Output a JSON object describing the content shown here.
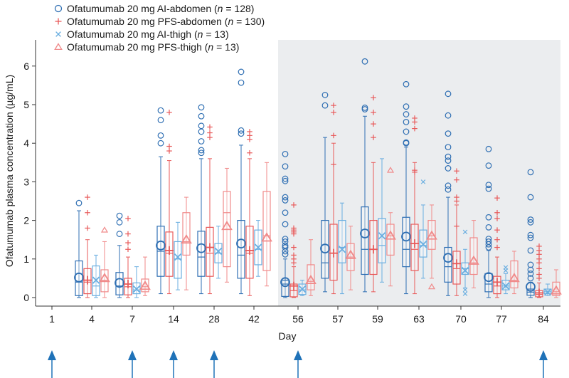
{
  "chart_data": {
    "type": "box",
    "title": "",
    "xlabel": "Day",
    "ylabel": "Ofatumumab plasma concentration (µg/mL)",
    "ylim": [
      -0.15,
      6.6
    ],
    "yticks": [
      0,
      1,
      2,
      3,
      4,
      5,
      6
    ],
    "categories": [
      "1",
      "4",
      "7",
      "14",
      "28",
      "42",
      "56",
      "57",
      "59",
      "63",
      "70",
      "77",
      "84"
    ],
    "shaded_region": {
      "from_category": "56",
      "to_category": "84"
    },
    "dosing_days": [
      "1",
      "7",
      "14",
      "28",
      "56",
      "84"
    ],
    "colors": {
      "ai_abdomen": "#2f6fb3",
      "pfs_abdomen": "#e85a5a",
      "ai_thigh": "#6aaee0",
      "pfs_thigh": "#f08a8a",
      "shade": "#ebedef",
      "arrow": "#1f72b8"
    },
    "legend": [
      {
        "label": "Ofatumumab 20 mg AI-abdomen (",
        "n": "128",
        "marker": "circle",
        "series": "ai_abdomen"
      },
      {
        "label": "Ofatumumab 20 mg PFS-abdomen (",
        "n": "130",
        "marker": "plus",
        "series": "pfs_abdomen"
      },
      {
        "label": "Ofatumumab 20 mg AI-thigh (",
        "n": "13",
        "marker": "x",
        "series": "ai_thigh"
      },
      {
        "label": "Ofatumumab 20 mg PFS-thigh (",
        "n": "13",
        "marker": "triangle",
        "series": "pfs_thigh"
      }
    ],
    "legend_n_prefix": "n",
    "legend_n_equals": " = ",
    "legend_suffix": ")",
    "series": [
      {
        "key": "ai_abdomen",
        "name": "Ofatumumab 20 mg AI-abdomen",
        "mean_marker": "circle",
        "outlier_marker": "circle",
        "boxes": {
          "4": {
            "min": 0.0,
            "q1": 0.05,
            "median": 0.4,
            "q3": 0.95,
            "max": 2.25,
            "mean": 0.52,
            "outliers": [
              2.45
            ]
          },
          "7": {
            "min": 0.0,
            "q1": 0.07,
            "median": 0.3,
            "q3": 0.65,
            "max": 1.35,
            "mean": 0.38,
            "outliers": [
              1.65,
              1.95,
              2.12
            ]
          },
          "14": {
            "min": 0.1,
            "q1": 0.55,
            "median": 1.2,
            "q3": 1.85,
            "max": 3.65,
            "mean": 1.35,
            "outliers": [
              4.0,
              4.2,
              4.6,
              4.85
            ]
          },
          "28": {
            "min": 0.1,
            "q1": 0.55,
            "median": 1.05,
            "q3": 1.72,
            "max": 3.6,
            "mean": 1.28,
            "outliers": [
              3.75,
              3.82,
              4.05,
              4.3,
              4.45,
              4.7,
              4.93
            ]
          },
          "42": {
            "min": 0.1,
            "q1": 0.5,
            "median": 1.1,
            "q3": 2.0,
            "max": 3.95,
            "mean": 1.4,
            "outliers": [
              4.25,
              4.33,
              5.57,
              5.85
            ]
          },
          "56": {
            "min": 0.0,
            "q1": 0.03,
            "median": 0.35,
            "q3": 0.45,
            "max": 1.0,
            "mean": 0.4,
            "outliers": [
              1.12,
              1.2,
              1.3,
              1.35,
              1.45,
              1.52,
              1.9,
              2.2,
              2.52,
              2.6,
              3.02,
              3.08,
              3.4,
              3.72
            ]
          },
          "57": {
            "min": 0.15,
            "q1": 0.5,
            "median": 0.9,
            "q3": 2.0,
            "max": 4.15,
            "mean": 1.27,
            "outliers": [
              4.98,
              5.25
            ]
          },
          "59": {
            "min": 0.15,
            "q1": 0.6,
            "median": 1.25,
            "q3": 2.35,
            "max": 4.7,
            "mean": 1.66,
            "outliers": [
              4.88,
              4.92,
              6.12
            ]
          },
          "63": {
            "min": 0.1,
            "q1": 0.8,
            "median": 1.25,
            "q3": 2.08,
            "max": 3.9,
            "mean": 1.58,
            "outliers": [
              4.0,
              4.02,
              4.3,
              4.55,
              4.75,
              4.95,
              5.53
            ]
          },
          "70": {
            "min": 0.05,
            "q1": 0.4,
            "median": 0.8,
            "q3": 1.3,
            "max": 2.6,
            "mean": 1.03,
            "outliers": [
              2.8,
              2.9,
              3.35,
              3.55,
              3.65,
              3.9,
              4.25,
              4.72,
              5.28
            ]
          },
          "77": {
            "min": 0.0,
            "q1": 0.15,
            "median": 0.35,
            "q3": 0.62,
            "max": 1.22,
            "mean": 0.53,
            "outliers": [
              1.3,
              1.38,
              1.45,
              1.52,
              1.82,
              2.08,
              2.82,
              2.92,
              3.42,
              3.85
            ]
          },
          "84": {
            "min": 0.0,
            "q1": 0.06,
            "median": 0.14,
            "q3": 0.22,
            "max": 0.4,
            "mean": 0.28,
            "outliers": [
              0.5,
              0.62,
              0.72,
              0.85,
              1.22,
              1.55,
              1.62,
              1.95,
              2.02,
              2.6,
              3.25
            ]
          }
        }
      },
      {
        "key": "pfs_abdomen",
        "name": "Ofatumumab 20 mg PFS-abdomen",
        "mean_marker": "plus",
        "outlier_marker": "plus",
        "boxes": {
          "4": {
            "min": 0.0,
            "q1": 0.1,
            "median": 0.4,
            "q3": 0.75,
            "max": 1.5,
            "mean": 0.45,
            "outliers": [
              1.8,
              2.2,
              2.6
            ]
          },
          "7": {
            "min": 0.0,
            "q1": 0.07,
            "median": 0.28,
            "q3": 0.5,
            "max": 1.05,
            "mean": 0.35,
            "outliers": [
              1.25,
              1.42,
              1.65,
              2.05
            ]
          },
          "14": {
            "min": 0.1,
            "q1": 0.55,
            "median": 1.15,
            "q3": 1.7,
            "max": 3.55,
            "mean": 1.22,
            "outliers": [
              3.8,
              3.92,
              4.8
            ]
          },
          "28": {
            "min": 0.1,
            "q1": 0.55,
            "median": 1.15,
            "q3": 1.82,
            "max": 3.6,
            "mean": 1.3,
            "outliers": [
              4.15,
              4.27,
              4.42
            ]
          },
          "42": {
            "min": 0.05,
            "q1": 0.5,
            "median": 1.15,
            "q3": 1.85,
            "max": 3.6,
            "mean": 1.22,
            "outliers": [
              3.75,
              4.1,
              4.2,
              4.3
            ]
          },
          "56": {
            "min": 0.0,
            "q1": 0.02,
            "median": 0.18,
            "q3": 0.35,
            "max": 0.8,
            "mean": 0.3,
            "outliers": [
              0.9,
              1.0,
              1.1,
              1.3,
              1.65,
              1.7,
              1.75,
              1.8,
              2.4
            ]
          },
          "57": {
            "min": 0.1,
            "q1": 0.45,
            "median": 1.15,
            "q3": 1.9,
            "max": 4.0,
            "mean": 1.15,
            "outliers": [
              3.45,
              4.2,
              4.8,
              4.98
            ]
          },
          "59": {
            "min": 0.15,
            "q1": 0.6,
            "median": 1.25,
            "q3": 2.0,
            "max": 3.5,
            "mean": 1.25,
            "outliers": [
              4.15,
              4.5,
              4.8,
              5.18
            ]
          },
          "63": {
            "min": 0.1,
            "q1": 0.7,
            "median": 1.25,
            "q3": 1.9,
            "max": 3.5,
            "mean": 1.4,
            "outliers": [
              3.25,
              3.3,
              4.38,
              4.55,
              4.65
            ]
          },
          "70": {
            "min": 0.05,
            "q1": 0.35,
            "median": 0.75,
            "q3": 1.2,
            "max": 2.4,
            "mean": 0.88,
            "outliers": [
              1.85,
              2.5,
              2.6,
              3.05,
              3.28
            ]
          },
          "77": {
            "min": 0.0,
            "q1": 0.1,
            "median": 0.3,
            "q3": 0.55,
            "max": 1.05,
            "mean": 0.4,
            "outliers": [
              1.3,
              1.5,
              1.75,
              2.05,
              2.2,
              2.58
            ]
          },
          "84": {
            "min": 0.0,
            "q1": 0.02,
            "median": 0.08,
            "q3": 0.18,
            "max": 0.38,
            "mean": 0.12,
            "outliers": [
              0.5,
              0.6,
              0.75,
              0.9,
              1.0,
              1.12,
              1.22,
              1.33
            ]
          }
        }
      },
      {
        "key": "ai_thigh",
        "name": "Ofatumumab 20 mg AI-thigh",
        "mean_marker": "x",
        "outlier_marker": "x",
        "boxes": {
          "4": {
            "min": 0.0,
            "q1": 0.05,
            "median": 0.3,
            "q3": 0.82,
            "max": 1.1,
            "mean": 0.45,
            "outliers": []
          },
          "7": {
            "min": 0.0,
            "q1": 0.1,
            "median": 0.2,
            "q3": 0.38,
            "max": 0.8,
            "mean": 0.22,
            "outliers": []
          },
          "14": {
            "min": 0.2,
            "q1": 0.5,
            "median": 1.0,
            "q3": 1.45,
            "max": 1.95,
            "mean": 1.05,
            "outliers": []
          },
          "28": {
            "min": 0.5,
            "q1": 0.9,
            "median": 1.15,
            "q3": 1.4,
            "max": 1.85,
            "mean": 1.2,
            "outliers": []
          },
          "42": {
            "min": 0.55,
            "q1": 0.85,
            "median": 1.25,
            "q3": 1.75,
            "max": 2.0,
            "mean": 1.3,
            "outliers": []
          },
          "56": {
            "min": 0.05,
            "q1": 0.08,
            "median": 0.2,
            "q3": 0.35,
            "max": 0.45,
            "mean": 0.22,
            "outliers": []
          },
          "57": {
            "min": 0.1,
            "q1": 0.9,
            "median": 1.3,
            "q3": 2.0,
            "max": 2.45,
            "mean": 1.25,
            "outliers": []
          },
          "59": {
            "min": 0.4,
            "q1": 0.9,
            "median": 1.35,
            "q3": 2.05,
            "max": 3.6,
            "mean": 1.6,
            "outliers": []
          },
          "63": {
            "min": 0.5,
            "q1": 1.05,
            "median": 1.35,
            "q3": 1.75,
            "max": 2.4,
            "mean": 1.38,
            "outliers": [
              3.0
            ]
          },
          "70": {
            "min": 0.25,
            "q1": 0.6,
            "median": 0.75,
            "q3": 0.9,
            "max": 1.25,
            "mean": 0.7,
            "outliers": [
              0.1,
              0.2,
              1.7
            ]
          },
          "77": {
            "min": 0.1,
            "q1": 0.2,
            "median": 0.3,
            "q3": 0.45,
            "max": 0.62,
            "mean": 0.3,
            "outliers": [
              0.7,
              0.78
            ]
          },
          "84": {
            "min": 0.05,
            "q1": 0.1,
            "median": 0.15,
            "q3": 0.22,
            "max": 0.35,
            "mean": 0.14,
            "outliers": []
          }
        }
      },
      {
        "key": "pfs_thigh",
        "name": "Ofatumumab 20 mg PFS-thigh",
        "mean_marker": "triangle",
        "outlier_marker": "triangle",
        "boxes": {
          "4": {
            "min": 0.0,
            "q1": 0.15,
            "median": 0.45,
            "q3": 0.72,
            "max": 1.45,
            "mean": 0.5,
            "outliers": [
              1.75
            ]
          },
          "7": {
            "min": 0.05,
            "q1": 0.15,
            "median": 0.28,
            "q3": 0.48,
            "max": 1.05,
            "mean": 0.3,
            "outliers": []
          },
          "14": {
            "min": 0.2,
            "q1": 1.1,
            "median": 1.45,
            "q3": 2.2,
            "max": 2.6,
            "mean": 1.5,
            "outliers": []
          },
          "28": {
            "min": 0.4,
            "q1": 0.8,
            "median": 2.2,
            "q3": 2.75,
            "max": 3.35,
            "mean": 1.85,
            "outliers": []
          },
          "42": {
            "min": 0.3,
            "q1": 0.7,
            "median": 1.6,
            "q3": 2.75,
            "max": 3.5,
            "mean": 1.55,
            "outliers": []
          },
          "56": {
            "min": 0.05,
            "q1": 0.2,
            "median": 0.42,
            "q3": 0.85,
            "max": 1.5,
            "mean": 0.45,
            "outliers": []
          },
          "57": {
            "min": 0.2,
            "q1": 0.7,
            "median": 1.05,
            "q3": 1.4,
            "max": 1.85,
            "mean": 1.1,
            "outliers": []
          },
          "59": {
            "min": 0.3,
            "q1": 1.1,
            "median": 1.6,
            "q3": 1.9,
            "max": 2.2,
            "mean": 1.6,
            "outliers": [
              3.3
            ]
          },
          "63": {
            "min": 0.5,
            "q1": 1.25,
            "median": 1.6,
            "q3": 2.0,
            "max": 2.4,
            "mean": 1.6,
            "outliers": [
              0.28
            ]
          },
          "70": {
            "min": 0.25,
            "q1": 0.6,
            "median": 0.9,
            "q3": 1.55,
            "max": 2.0,
            "mean": 0.95,
            "outliers": []
          },
          "77": {
            "min": 0.1,
            "q1": 0.25,
            "median": 0.45,
            "q3": 0.95,
            "max": 1.2,
            "mean": 0.5,
            "outliers": []
          },
          "84": {
            "min": 0.0,
            "q1": 0.05,
            "median": 0.15,
            "q3": 0.4,
            "max": 0.72,
            "mean": 0.18,
            "outliers": []
          }
        }
      }
    ]
  }
}
